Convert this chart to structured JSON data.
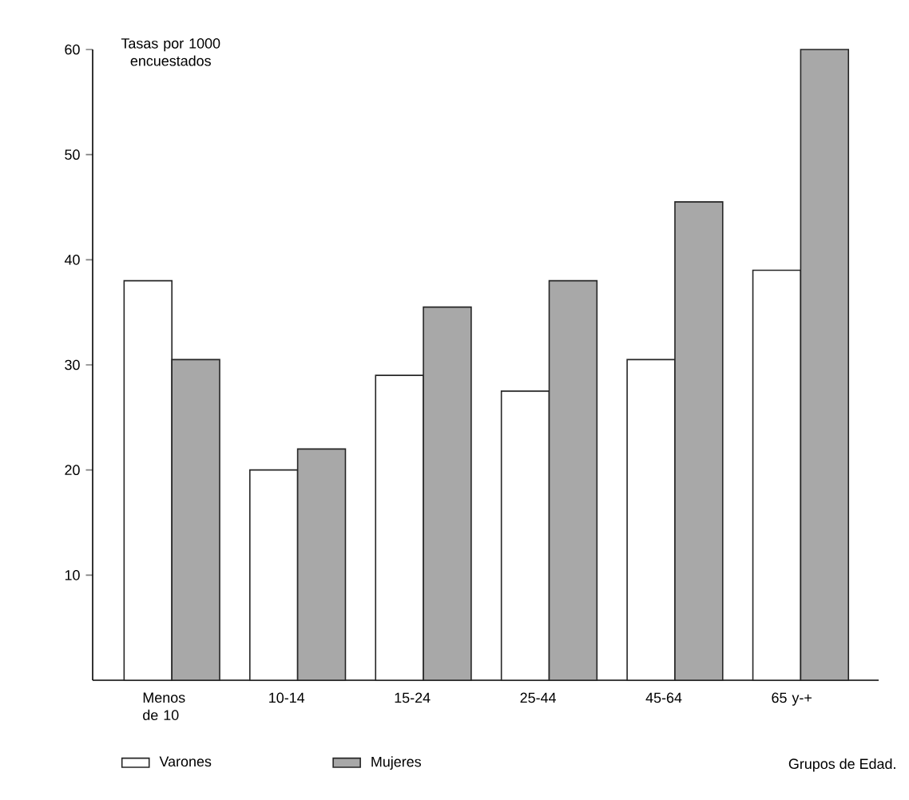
{
  "chart_data": {
    "type": "bar",
    "ylabel": "Tasas por 1000 encuestados",
    "xlabel": "Grupos de Edad.",
    "categories": [
      "Menos de 10",
      "10-14",
      "15-24",
      "25-44",
      "45-64",
      "65 y-+"
    ],
    "series": [
      {
        "name": "Varones",
        "color": "#ffffff",
        "values": [
          38,
          20,
          29,
          27.5,
          30.5,
          39
        ]
      },
      {
        "name": "Mujeres",
        "color": "#a8a8a8",
        "values": [
          30.5,
          22,
          35.5,
          38,
          45.5,
          60
        ]
      }
    ],
    "ylim": [
      0,
      60
    ],
    "yticks": [
      10,
      20,
      30,
      40,
      50,
      60
    ],
    "grid": false,
    "legend": "bottom"
  }
}
